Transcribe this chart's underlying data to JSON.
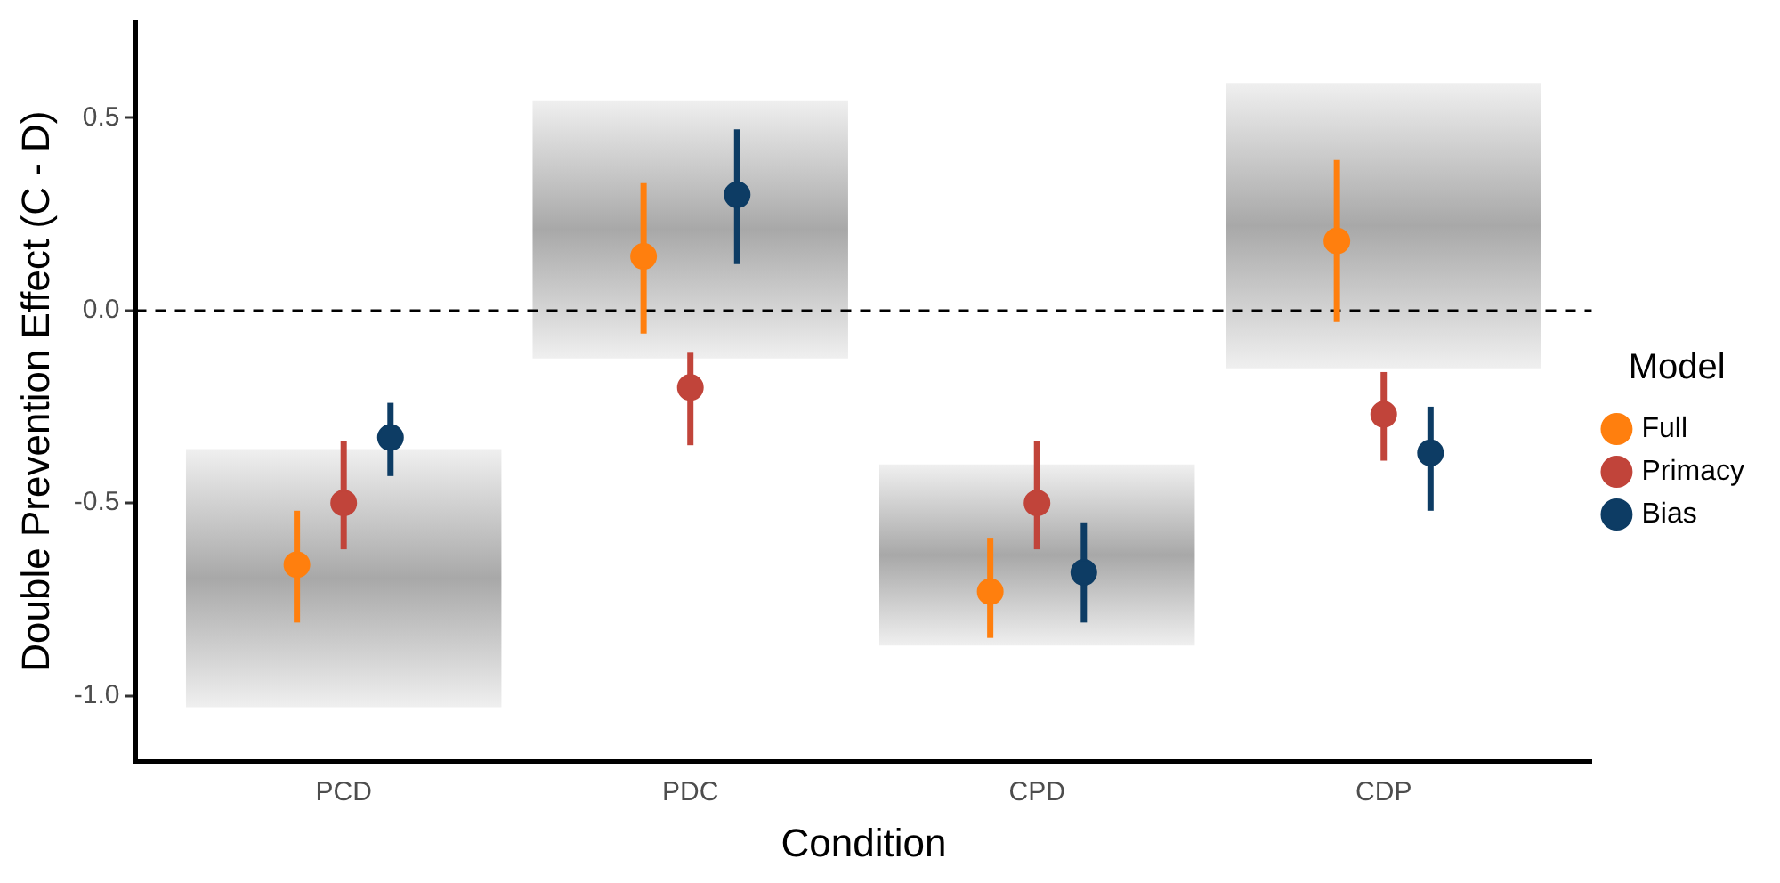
{
  "chart_data": {
    "type": "scatter",
    "xlabel": "Condition",
    "ylabel": "Double Prevention Effect (C - D)",
    "legend_title": "Model",
    "legend": "right",
    "grid": false,
    "marker": "circle",
    "categories": [
      "PCD",
      "PDC",
      "CPD",
      "CDP"
    ],
    "ylim": [
      -1.17,
      0.75
    ],
    "yticks": [
      {
        "value": 0.5,
        "label": "0.5"
      },
      {
        "value": 0,
        "label": "0.0"
      },
      {
        "value": -0.5,
        "label": "-0.5"
      },
      {
        "value": -1,
        "label": "-1.0"
      }
    ],
    "ref_lines": [
      {
        "axis": "y",
        "value": 0,
        "color": "#000000",
        "line_style": "dashed"
      }
    ],
    "series": [
      {
        "type": "bar",
        "color": "#a8a8a8",
        "base": [
          -1.03,
          -0.125,
          -0.87,
          -0.15
        ],
        "values": [
          0.67,
          0.67,
          0.47,
          0.74
        ]
      },
      {
        "name": "Full",
        "color": "#ff7f0e",
        "values": [
          -0.66,
          0.14,
          -0.73,
          0.18
        ],
        "errors": [
          [
            -0.81,
            -0.52
          ],
          [
            -0.06,
            0.33
          ],
          [
            -0.85,
            -0.59
          ],
          [
            -0.03,
            0.39
          ]
        ]
      },
      {
        "name": "Primacy",
        "color": "#c1443a",
        "values": [
          -0.5,
          -0.2,
          -0.5,
          -0.27
        ],
        "errors": [
          [
            -0.62,
            -0.34
          ],
          [
            -0.35,
            -0.11
          ],
          [
            -0.62,
            -0.34
          ],
          [
            -0.39,
            -0.16
          ]
        ]
      },
      {
        "name": "Bias",
        "color": "#0d3c64",
        "values": [
          -0.33,
          0.3,
          -0.68,
          -0.37
        ],
        "errors": [
          [
            -0.43,
            -0.24
          ],
          [
            0.12,
            0.47
          ],
          [
            -0.81,
            -0.55
          ],
          [
            -0.52,
            -0.25
          ]
        ]
      }
    ]
  }
}
